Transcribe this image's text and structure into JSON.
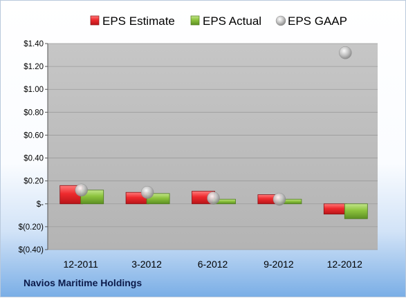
{
  "company_label": "Navios Maritime Holdings",
  "colors": {
    "estimate": "#e0262c",
    "actual": "#8cc33d",
    "gaap": "#b5b5b5",
    "plot_bg": "#cbcbcb"
  },
  "chart_data": {
    "type": "bar",
    "categories": [
      "12-2011",
      "3-2012",
      "6-2012",
      "9-2012",
      "12-2012"
    ],
    "series": [
      {
        "name": "EPS Estimate",
        "kind": "bar",
        "values": [
          0.16,
          0.1,
          0.11,
          0.08,
          -0.09
        ]
      },
      {
        "name": "EPS Actual",
        "kind": "bar",
        "values": [
          0.12,
          0.09,
          0.04,
          0.04,
          -0.13
        ]
      },
      {
        "name": "EPS GAAP",
        "kind": "marker",
        "values": [
          0.12,
          0.1,
          0.05,
          0.04,
          1.32
        ]
      }
    ],
    "y_ticks": [
      {
        "value": 1.4,
        "label": "$1.40"
      },
      {
        "value": 1.2,
        "label": "$1.20"
      },
      {
        "value": 1.0,
        "label": "$1.00"
      },
      {
        "value": 0.8,
        "label": "$0.80"
      },
      {
        "value": 0.6,
        "label": "$0.60"
      },
      {
        "value": 0.4,
        "label": "$0.40"
      },
      {
        "value": 0.2,
        "label": "$0.20"
      },
      {
        "value": 0.0,
        "label": "$-"
      },
      {
        "value": -0.2,
        "label": "$(0.20)"
      },
      {
        "value": -0.4,
        "label": "$(0.40)"
      }
    ],
    "ylim": [
      -0.4,
      1.4
    ],
    "title": "",
    "xlabel": "",
    "ylabel": "",
    "grid": true,
    "legend_position": "top"
  }
}
